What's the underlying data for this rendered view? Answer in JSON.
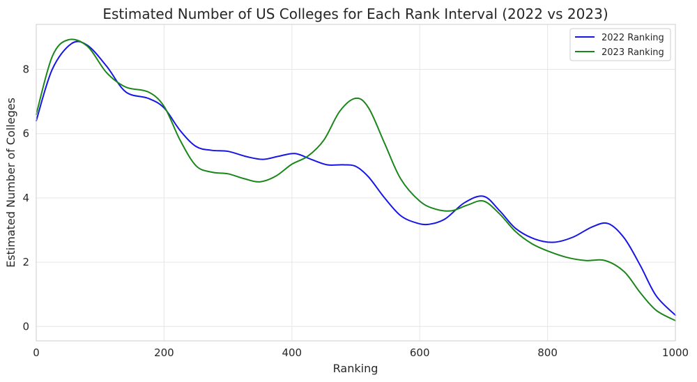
{
  "chart_data": {
    "type": "line",
    "title": "Estimated Number of US Colleges for Each Rank Interval (2022 vs 2023)",
    "xlabel": "Ranking",
    "ylabel": "Estimated Number of Colleges",
    "xlim": [
      0,
      1000
    ],
    "ylim": [
      -0.45,
      9.4
    ],
    "xticks": [
      0,
      200,
      400,
      600,
      800,
      1000
    ],
    "yticks": [
      0,
      2,
      4,
      6,
      8
    ],
    "grid": true,
    "legend_position": "top-right",
    "series": [
      {
        "name": "2022 Ranking",
        "color": "#1515e6",
        "x": [
          0,
          25,
          55,
          80,
          110,
          140,
          175,
          200,
          225,
          250,
          275,
          300,
          330,
          355,
          380,
          405,
          430,
          455,
          480,
          500,
          520,
          545,
          570,
          595,
          615,
          640,
          670,
          700,
          725,
          750,
          780,
          810,
          840,
          870,
          895,
          920,
          945,
          970,
          1000
        ],
        "y": [
          6.4,
          8.0,
          8.8,
          8.75,
          8.1,
          7.3,
          7.1,
          6.8,
          6.1,
          5.6,
          5.48,
          5.45,
          5.28,
          5.2,
          5.3,
          5.38,
          5.2,
          5.03,
          5.03,
          4.98,
          4.65,
          4.0,
          3.45,
          3.22,
          3.18,
          3.35,
          3.85,
          4.05,
          3.6,
          3.05,
          2.72,
          2.62,
          2.78,
          3.1,
          3.2,
          2.75,
          1.9,
          0.95,
          0.35
        ]
      },
      {
        "name": "2023 Ranking",
        "color": "#1a861a",
        "x": [
          0,
          25,
          50,
          80,
          110,
          140,
          175,
          200,
          225,
          250,
          275,
          300,
          325,
          350,
          375,
          400,
          425,
          450,
          475,
          500,
          520,
          545,
          570,
          600,
          625,
          650,
          675,
          700,
          725,
          750,
          775,
          800,
          830,
          860,
          890,
          920,
          945,
          970,
          1000
        ],
        "y": [
          6.6,
          8.4,
          8.92,
          8.72,
          7.9,
          7.45,
          7.3,
          6.85,
          5.8,
          5.0,
          4.8,
          4.75,
          4.6,
          4.5,
          4.68,
          5.05,
          5.3,
          5.8,
          6.7,
          7.1,
          6.8,
          5.7,
          4.6,
          3.9,
          3.65,
          3.6,
          3.78,
          3.9,
          3.5,
          2.95,
          2.58,
          2.35,
          2.15,
          2.05,
          2.05,
          1.7,
          1.05,
          0.5,
          0.18
        ]
      }
    ]
  }
}
